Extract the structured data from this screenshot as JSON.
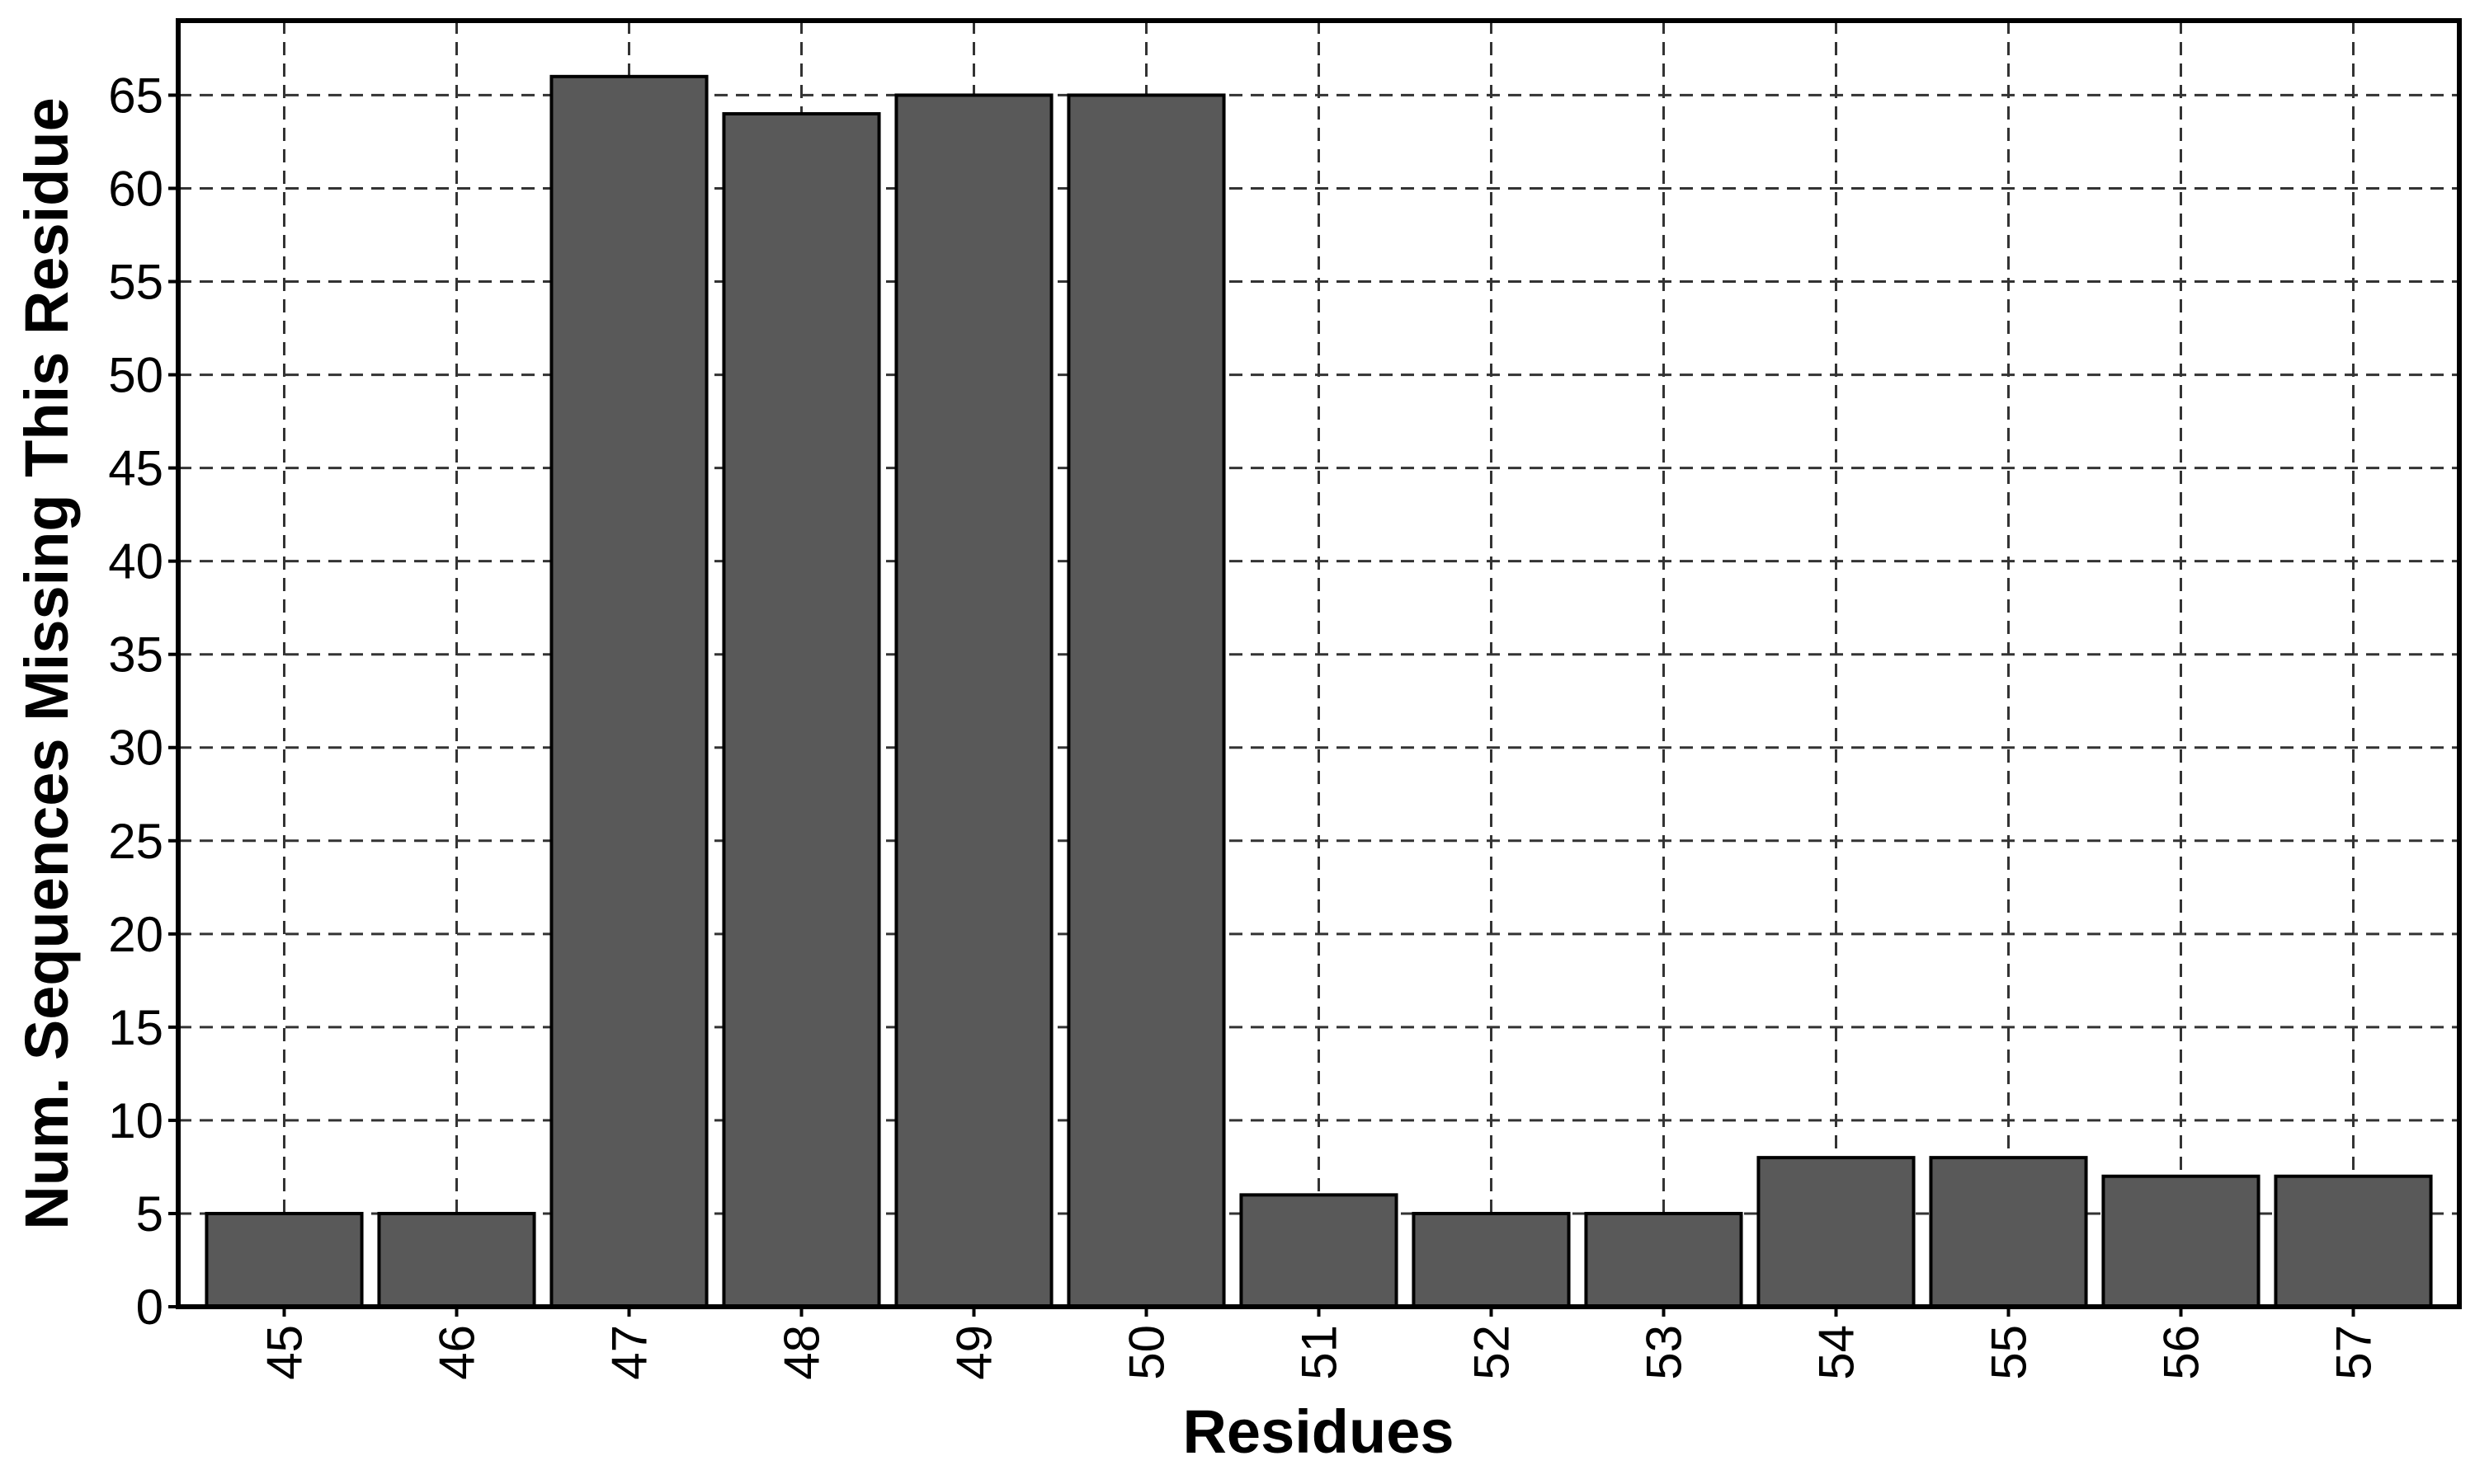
{
  "chart_data": {
    "type": "bar",
    "categories": [
      "45",
      "46",
      "47",
      "48",
      "49",
      "50",
      "51",
      "52",
      "53",
      "54",
      "55",
      "56",
      "57"
    ],
    "values": [
      5,
      5,
      66,
      64,
      65,
      65,
      6,
      5,
      5,
      8,
      8,
      7,
      7
    ],
    "xlabel": "Residues",
    "ylabel": "Num. Sequences Missing This Residue",
    "ylim": [
      0,
      69
    ],
    "yticks": [
      0,
      5,
      10,
      15,
      20,
      25,
      30,
      35,
      40,
      45,
      50,
      55,
      60,
      65
    ],
    "grid": true,
    "x_tick_rotation": "vertical",
    "colors": {
      "bar_fill": "#595959",
      "bar_edge": "#000000",
      "grid": "#333333"
    }
  }
}
